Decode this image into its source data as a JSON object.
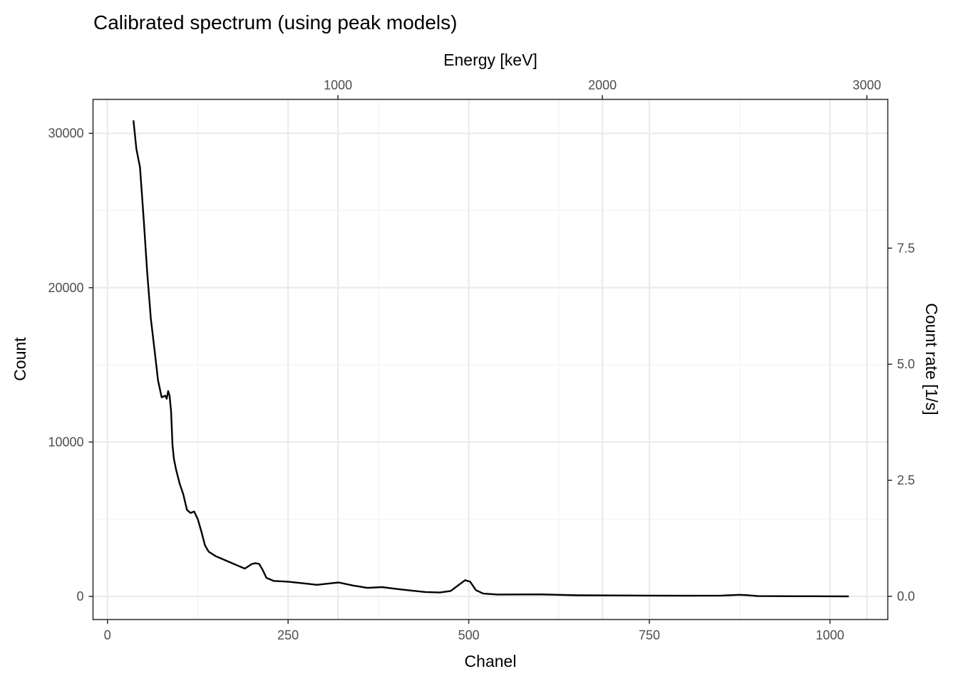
{
  "chart_data": {
    "type": "line",
    "title": "Calibrated spectrum (using peak models)",
    "xlabel": "Chanel",
    "ylabel": "Count",
    "x2label": "Energy [keV]",
    "y2label": "Count rate [1/s]",
    "xlim": [
      -20,
      1080
    ],
    "ylim": [
      -1500,
      32200
    ],
    "x_ticks": [
      0,
      250,
      500,
      750,
      1000
    ],
    "y_ticks": [
      0,
      10000,
      20000,
      30000
    ],
    "x2_ticks": [
      1000,
      2000,
      3000
    ],
    "x2_channel_at": [
      {
        "energy": 1000,
        "channel": 319
      },
      {
        "energy": 2000,
        "channel": 685
      },
      {
        "energy": 3000,
        "channel": 1051
      }
    ],
    "y2_ticks": [
      "0.0",
      "2.5",
      "5.0",
      "7.5"
    ],
    "y2_count_at": [
      {
        "rate": 0.0,
        "count": 0
      },
      {
        "rate": 2.5,
        "count": 7520
      },
      {
        "rate": 5.0,
        "count": 15040
      },
      {
        "rate": 7.5,
        "count": 22560
      }
    ],
    "grid": true,
    "series": [
      {
        "color": "#000000",
        "x": [
          36,
          40,
          45,
          50,
          55,
          60,
          65,
          70,
          75,
          80,
          82,
          84,
          86,
          88,
          90,
          92,
          95,
          100,
          105,
          110,
          115,
          120,
          125,
          130,
          135,
          140,
          150,
          160,
          170,
          180,
          190,
          200,
          205,
          210,
          215,
          220,
          230,
          250,
          270,
          290,
          310,
          320,
          340,
          360,
          380,
          400,
          420,
          440,
          460,
          475,
          485,
          495,
          502,
          510,
          520,
          540,
          600,
          650,
          700,
          750,
          800,
          850,
          875,
          885,
          900,
          950,
          1000,
          1025
        ],
        "y": [
          30800,
          29000,
          27800,
          24500,
          21000,
          18000,
          16000,
          14000,
          12900,
          13000,
          12800,
          13300,
          13000,
          12000,
          9800,
          8900,
          8200,
          7300,
          6600,
          5600,
          5400,
          5500,
          5000,
          4200,
          3300,
          2900,
          2600,
          2400,
          2200,
          2000,
          1800,
          2100,
          2150,
          2100,
          1700,
          1200,
          1000,
          950,
          850,
          750,
          850,
          900,
          700,
          550,
          600,
          480,
          380,
          280,
          250,
          350,
          700,
          1050,
          950,
          400,
          180,
          120,
          130,
          70,
          60,
          50,
          40,
          50,
          100,
          80,
          20,
          10,
          5,
          0
        ]
      }
    ]
  }
}
